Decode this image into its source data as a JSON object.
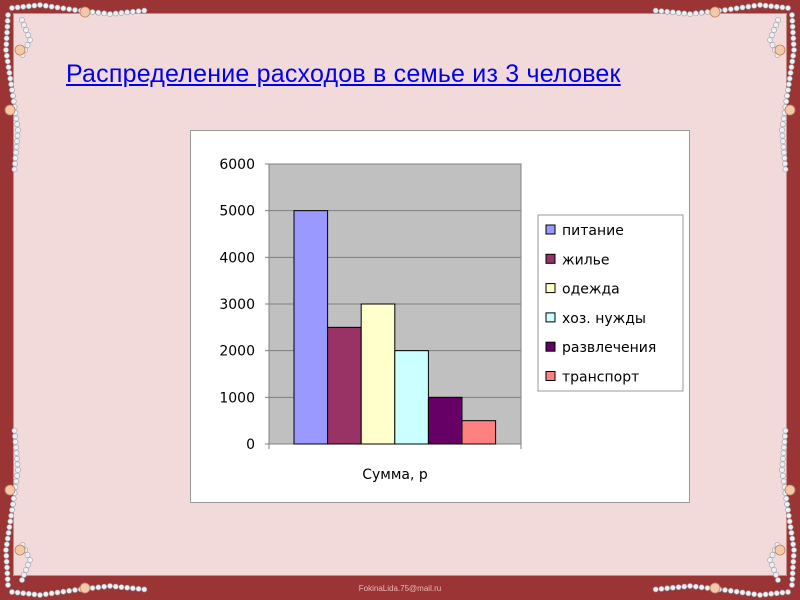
{
  "title": "Распределение расходов в семье из 3 человек",
  "footer": "FokinaLida.75@mail.ru",
  "colors": {
    "border": "#9b3535",
    "background": "#f2dadb",
    "plot_bg": "#c0c0c0",
    "title": "#0000ee"
  },
  "chart_data": {
    "type": "bar",
    "categories": [
      "Сумма, р"
    ],
    "xlabel": "Сумма, р",
    "ylim": [
      0,
      6000
    ],
    "yticks": [
      "0",
      "1000",
      "2000",
      "3000",
      "4000",
      "5000",
      "6000"
    ],
    "grid": true,
    "legend_position": "right",
    "series": [
      {
        "name": "питание",
        "values": [
          5000
        ],
        "color": "#9999ff"
      },
      {
        "name": "жилье",
        "values": [
          2500
        ],
        "color": "#993366"
      },
      {
        "name": "одежда",
        "values": [
          3000
        ],
        "color": "#ffffcc"
      },
      {
        "name": "хоз. нужды",
        "values": [
          2000
        ],
        "color": "#ccffff"
      },
      {
        "name": "развлечения",
        "values": [
          1000
        ],
        "color": "#660066"
      },
      {
        "name": "транспорт",
        "values": [
          500
        ],
        "color": "#ff8080"
      }
    ]
  }
}
